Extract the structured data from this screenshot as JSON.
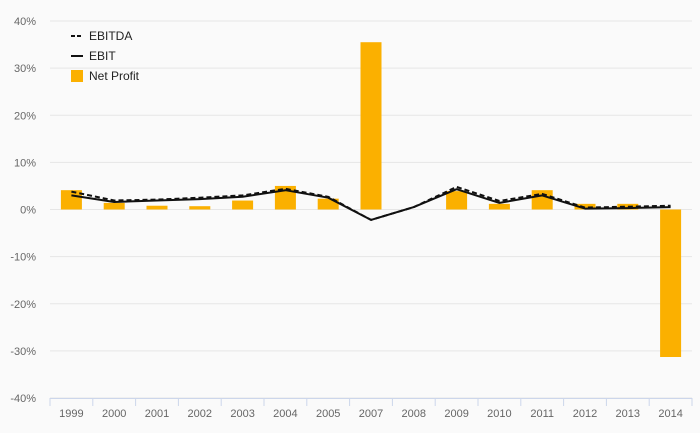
{
  "chart_data": {
    "type": "bar",
    "categories": [
      "1999",
      "2000",
      "2001",
      "2002",
      "2003",
      "2004",
      "2005",
      "2007",
      "2008",
      "2009",
      "2010",
      "2011",
      "2012",
      "2013",
      "2014"
    ],
    "ylim": [
      -40,
      40
    ],
    "yticks": [
      -40,
      -30,
      -20,
      -10,
      0,
      10,
      20,
      30,
      40
    ],
    "ytick_labels": [
      "-40%",
      "-30%",
      "-20%",
      "-10%",
      "0%",
      "10%",
      "20%",
      "30%",
      "40%"
    ],
    "grid": true,
    "legend_position": "top-left",
    "series": [
      {
        "name": "EBITDA",
        "type": "line",
        "style": "dashed",
        "color": "#111111",
        "values": [
          3.8,
          1.9,
          2.1,
          2.5,
          3.0,
          4.4,
          2.7,
          -2.2,
          0.5,
          4.8,
          1.8,
          3.3,
          0.4,
          0.6,
          0.8
        ]
      },
      {
        "name": "EBIT",
        "type": "line",
        "style": "solid",
        "color": "#111111",
        "values": [
          3.0,
          1.6,
          1.9,
          2.2,
          2.7,
          4.1,
          2.5,
          -2.2,
          0.5,
          4.3,
          1.4,
          3.0,
          0.2,
          0.3,
          0.5
        ]
      },
      {
        "name": "Net Profit",
        "type": "bar",
        "color": "#fbb000",
        "values": [
          4.1,
          1.4,
          0.8,
          0.7,
          1.9,
          5.0,
          2.3,
          35.5,
          0.0,
          3.9,
          1.2,
          4.1,
          1.2,
          1.2,
          -31.3
        ]
      }
    ]
  }
}
